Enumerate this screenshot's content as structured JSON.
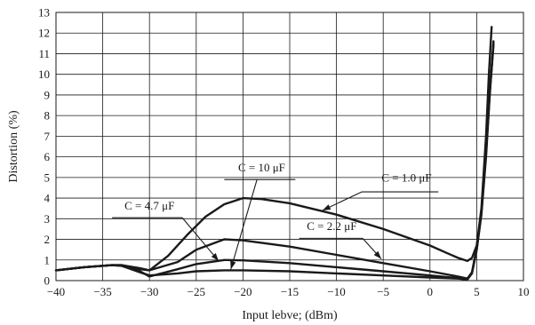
{
  "chart_data": {
    "type": "line",
    "xlabel": "Input lebve; (dBm)",
    "ylabel": "Distortion (%)",
    "xlim": [
      -40,
      10
    ],
    "ylim": [
      0,
      13
    ],
    "xticks": [
      -40,
      -35,
      -30,
      -25,
      -20,
      -15,
      -10,
      -5,
      0,
      5,
      10
    ],
    "yticks": [
      0,
      1,
      2,
      3,
      4,
      5,
      6,
      7,
      8,
      9,
      10,
      11,
      12,
      13
    ],
    "grid": true,
    "series": [
      {
        "name": "C = 1.0 μF",
        "x": [
          -40,
          -37,
          -34,
          -33,
          -31,
          -30,
          -28,
          -26,
          -24,
          -22,
          -20,
          -18,
          -15,
          -10,
          -5,
          0,
          2,
          3,
          4,
          4.5,
          5,
          5.5,
          6,
          6.3,
          6.6
        ],
        "y": [
          0.5,
          0.65,
          0.75,
          0.75,
          0.6,
          0.5,
          1.2,
          2.2,
          3.1,
          3.7,
          4.0,
          3.95,
          3.75,
          3.2,
          2.5,
          1.7,
          1.3,
          1.1,
          0.95,
          1.1,
          1.7,
          3.5,
          7.0,
          10.0,
          12.3
        ]
      },
      {
        "name": "C = 2.2 μF",
        "x": [
          -40,
          -37,
          -34,
          -33,
          -31,
          -30,
          -27,
          -25,
          -22,
          -20,
          -15,
          -10,
          -5,
          0,
          3,
          4,
          4.5,
          5,
          5.5,
          6,
          6.4,
          6.8
        ],
        "y": [
          0.5,
          0.65,
          0.75,
          0.75,
          0.55,
          0.5,
          0.9,
          1.5,
          2.0,
          1.95,
          1.65,
          1.25,
          0.85,
          0.45,
          0.2,
          0.1,
          0.4,
          1.5,
          3.2,
          6.0,
          9.0,
          11.6
        ]
      },
      {
        "name": "C = 4.7 μF",
        "x": [
          -40,
          -37,
          -34,
          -33,
          -31,
          -30,
          -27,
          -25,
          -22,
          -20,
          -15,
          -10,
          -5,
          0,
          3,
          4,
          4.5,
          5,
          5.5,
          6,
          6.4,
          6.8
        ],
        "y": [
          0.5,
          0.65,
          0.75,
          0.72,
          0.45,
          0.2,
          0.55,
          0.8,
          1.0,
          0.98,
          0.85,
          0.65,
          0.45,
          0.25,
          0.12,
          0.08,
          0.4,
          1.6,
          3.4,
          6.3,
          9.2,
          11.5
        ]
      },
      {
        "name": "C = 10 μF",
        "x": [
          -40,
          -37,
          -34,
          -33,
          -31,
          -30,
          -27,
          -25,
          -22,
          -20,
          -15,
          -10,
          -5,
          0,
          3,
          4,
          4.5,
          5,
          5.5,
          6,
          6.4,
          6.8
        ],
        "y": [
          0.5,
          0.65,
          0.75,
          0.72,
          0.4,
          0.25,
          0.35,
          0.45,
          0.5,
          0.5,
          0.45,
          0.35,
          0.25,
          0.15,
          0.1,
          0.05,
          0.35,
          1.5,
          3.3,
          6.2,
          9.1,
          11.4
        ]
      }
    ],
    "annotations": [
      {
        "series": 0,
        "text": "C = 1.0 μF",
        "text_x": -2.5,
        "text_y": 4.8,
        "line": [
          [
            -7.3,
            4.3
          ],
          [
            0.9,
            4.3
          ]
        ],
        "arrow_from": [
          -7.3,
          4.3
        ],
        "arrow_to": [
          -11.5,
          3.4
        ]
      },
      {
        "series": 1,
        "text": "C = 2.2 μF",
        "text_x": -10.5,
        "text_y": 2.45,
        "line": [
          [
            -14,
            2.05
          ],
          [
            -7.2,
            2.05
          ]
        ],
        "arrow_from": [
          -7.2,
          2.05
        ],
        "arrow_to": [
          -5.2,
          1.05
        ]
      },
      {
        "series": 2,
        "text": "C = 4.7 μF",
        "text_x": -30,
        "text_y": 3.45,
        "line": [
          [
            -34,
            3.05
          ],
          [
            -26.5,
            3.05
          ]
        ],
        "arrow_from": [
          -26.5,
          3.05
        ],
        "arrow_to": [
          -22.6,
          0.95
        ]
      },
      {
        "series": 3,
        "text": "C = 10 μF",
        "text_x": -18,
        "text_y": 5.3,
        "line": [
          [
            -22,
            4.9
          ],
          [
            -14.4,
            4.9
          ]
        ],
        "arrow_from": [
          -18.5,
          4.9
        ],
        "arrow_to": [
          -21.3,
          0.55
        ]
      }
    ]
  }
}
